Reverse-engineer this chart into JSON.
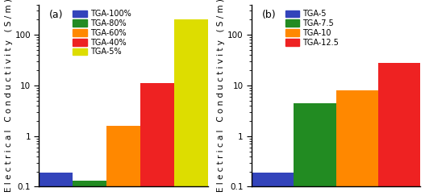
{
  "panel_a": {
    "label": "(a)",
    "values": [
      0.19,
      0.13,
      1.6,
      11.0,
      200
    ],
    "colors": [
      "#3344BB",
      "#228B22",
      "#FF8800",
      "#EE2222",
      "#DDDD00"
    ],
    "legend_labels": [
      "TGA-100%",
      "TGA-80%",
      "TGA-60%",
      "TGA-40%",
      "TGA-5%"
    ]
  },
  "panel_b": {
    "label": "(b)",
    "values": [
      0.19,
      4.5,
      8.0,
      28
    ],
    "colors": [
      "#3344BB",
      "#228B22",
      "#FF8800",
      "#EE2222"
    ],
    "legend_labels": [
      "TGA-5",
      "TGA-7.5",
      "TGA-10",
      "TGA-12.5"
    ]
  },
  "ylabel": "Electrical Conductivity  (S/m)",
  "ylabel_spaced": "E l e c t r i c a l   C o n d u c t i v i t y   ( S / m )",
  "ylim": [
    0.1,
    400
  ],
  "yticks": [
    0.1,
    1,
    10,
    100
  ],
  "ytick_labels": [
    "0.1",
    "1",
    "10",
    "100"
  ],
  "background_color": "#FFFFFF",
  "font_size": 7.5,
  "legend_fontsize": 7.0,
  "panel_label_fontsize": 9
}
